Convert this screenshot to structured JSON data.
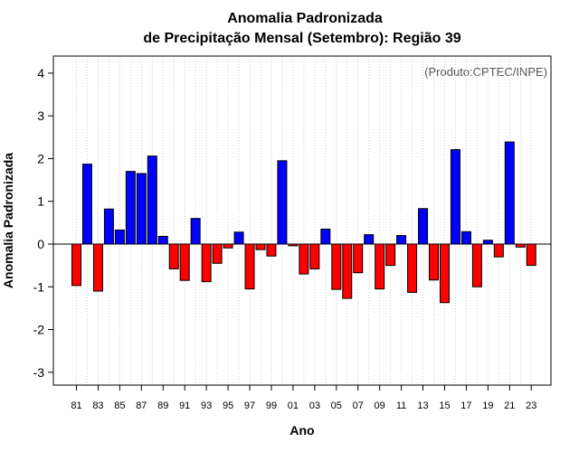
{
  "chart_data": {
    "type": "bar",
    "title": "Anomalia Padronizada",
    "subtitle": "de Precipitação Mensal (Setembro): Região 39",
    "xlabel": "Ano",
    "ylabel": "Anomalia Padronizada",
    "annotation": "(Produto:CPTEC/INPE)",
    "ylim": [
      -3.3,
      4.4
    ],
    "yticks": [
      -3,
      -2,
      -1,
      0,
      1,
      2,
      3,
      4
    ],
    "categories": [
      "81",
      "82",
      "83",
      "84",
      "85",
      "86",
      "87",
      "88",
      "89",
      "90",
      "91",
      "92",
      "93",
      "94",
      "95",
      "96",
      "97",
      "98",
      "99",
      "00",
      "01",
      "02",
      "03",
      "04",
      "05",
      "06",
      "07",
      "08",
      "09",
      "10",
      "11",
      "12",
      "13",
      "14",
      "15",
      "16",
      "17",
      "18",
      "19",
      "20",
      "21",
      "22",
      "23"
    ],
    "tick_labels": [
      "81",
      "83",
      "85",
      "87",
      "89",
      "91",
      "93",
      "95",
      "97",
      "99",
      "01",
      "03",
      "05",
      "07",
      "09",
      "11",
      "13",
      "15",
      "17",
      "19",
      "21",
      "23"
    ],
    "values": [
      -0.97,
      1.87,
      -1.1,
      0.82,
      0.33,
      1.7,
      1.65,
      2.06,
      0.18,
      -0.58,
      -0.85,
      0.6,
      -0.88,
      -0.45,
      -0.09,
      0.28,
      -1.05,
      -0.13,
      -0.28,
      1.95,
      -0.04,
      -0.7,
      -0.58,
      0.35,
      -1.06,
      -1.27,
      -0.67,
      0.22,
      -1.05,
      -0.5,
      0.2,
      -1.13,
      0.83,
      -0.84,
      -1.37,
      2.21,
      0.29,
      -1.0,
      0.09,
      -0.3,
      2.39,
      -0.07,
      -0.5
    ],
    "grid": "vertical dotted",
    "colors": {
      "positive": "#0000ff",
      "negative": "#ff0000",
      "edge": "#000000",
      "grid": "#cccccc"
    }
  }
}
